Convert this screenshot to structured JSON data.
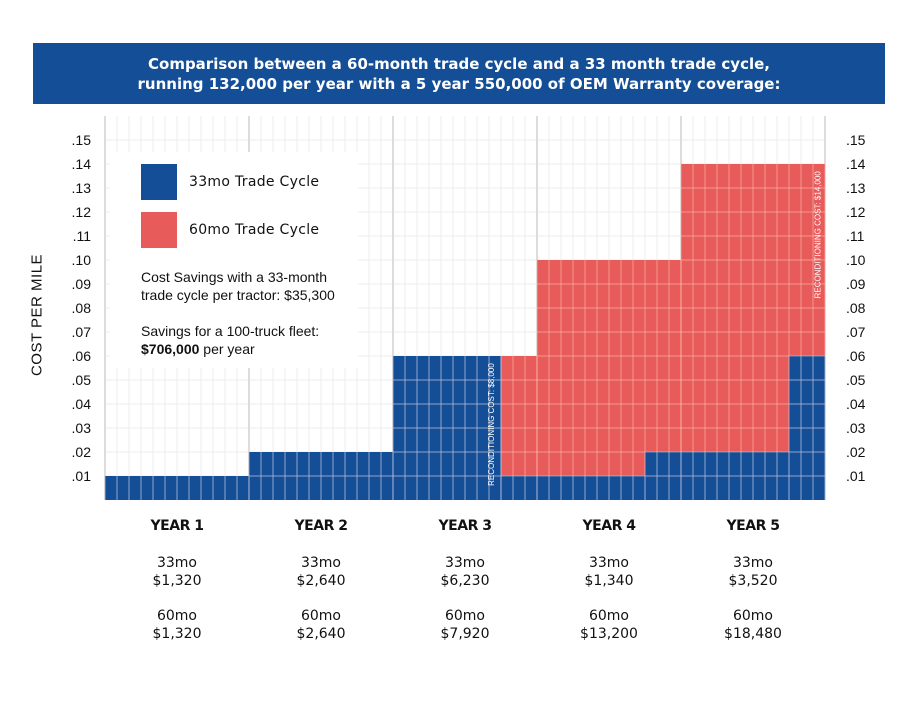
{
  "banner": {
    "line1": "Comparison between a 60-month trade cycle and a 33 month trade cycle,",
    "line2": "running 132,000 per year with a 5 year 550,000 of OEM Warranty coverage:"
  },
  "colors": {
    "banner": "#134e96",
    "series_33mo": "#134e96",
    "series_60mo": "#e85b5b",
    "grid": "#e6e6e6"
  },
  "legend": {
    "items": [
      {
        "label": "33mo Trade Cycle"
      },
      {
        "label": "60mo Trade Cycle"
      }
    ],
    "note1_line1": "Cost Savings with a 33-month",
    "note1_line2": "trade cycle per tractor: $35,300",
    "note2_line1": "Savings for a 100-truck fleet:",
    "note2_bold": "$706,000",
    "note2_rest": " per year"
  },
  "chart_data": {
    "type": "area",
    "title": "Comparison between a 60-month trade cycle and a 33 month trade cycle, running 132,000 per year with a 5 year 550,000 of OEM Warranty coverage:",
    "ylabel": "COST PER MILE",
    "xlabel": "",
    "ylim": [
      0,
      0.15
    ],
    "xlim": [
      0,
      5
    ],
    "yticks": [
      ".01",
      ".02",
      ".03",
      ".04",
      ".05",
      ".06",
      ".07",
      ".08",
      ".09",
      ".10",
      ".11",
      ".12",
      ".13",
      ".14",
      ".15"
    ],
    "ytick_values": [
      0.01,
      0.02,
      0.03,
      0.04,
      0.05,
      0.06,
      0.07,
      0.08,
      0.09,
      0.1,
      0.11,
      0.12,
      0.13,
      0.14,
      0.15
    ],
    "categories": [
      "YEAR 1",
      "YEAR 2",
      "YEAR 3",
      "YEAR 4",
      "YEAR 5"
    ],
    "grid": true,
    "legend_position": "top-left",
    "series": [
      {
        "name": "60mo Trade Cycle",
        "steps": [
          {
            "x0": 0,
            "x1": 1,
            "y": 0.01
          },
          {
            "x0": 1,
            "x1": 2,
            "y": 0.02
          },
          {
            "x0": 2,
            "x1": 2.75,
            "y": 0.06
          },
          {
            "x0": 2.75,
            "x1": 3,
            "y": 0.06
          },
          {
            "x0": 3,
            "x1": 4,
            "y": 0.1
          },
          {
            "x0": 4,
            "x1": 5,
            "y": 0.14
          }
        ]
      },
      {
        "name": "33mo Trade Cycle",
        "steps": [
          {
            "x0": 0,
            "x1": 1,
            "y": 0.01
          },
          {
            "x0": 1,
            "x1": 2,
            "y": 0.02
          },
          {
            "x0": 2,
            "x1": 2.75,
            "y": 0.06
          },
          {
            "x0": 2.75,
            "x1": 3.75,
            "y": 0.01
          },
          {
            "x0": 3.75,
            "x1": 4.75,
            "y": 0.02
          },
          {
            "x0": 4.75,
            "x1": 5,
            "y": 0.06
          }
        ]
      }
    ],
    "annotations": [
      {
        "text": "RECONDITIONING COST: $8,000",
        "x": 2.7,
        "y_top": 0.057,
        "series": "33mo Trade Cycle"
      },
      {
        "text": "RECONDITIONING COST: $14,000",
        "x": 4.97,
        "y_top": 0.137,
        "series": "60mo Trade Cycle"
      }
    ],
    "year_costs": [
      {
        "year": "YEAR 1",
        "cost_33mo": "$1,320",
        "cost_60mo": "$1,320"
      },
      {
        "year": "YEAR 2",
        "cost_33mo": "$2,640",
        "cost_60mo": "$2,640"
      },
      {
        "year": "YEAR 3",
        "cost_33mo": "$6,230",
        "cost_60mo": "$7,920"
      },
      {
        "year": "YEAR 4",
        "cost_33mo": "$1,340",
        "cost_60mo": "$13,200"
      },
      {
        "year": "YEAR 5",
        "cost_33mo": "$3,520",
        "cost_60mo": "$18,480"
      }
    ]
  },
  "series_short": {
    "a": "33mo",
    "b": "60mo"
  }
}
